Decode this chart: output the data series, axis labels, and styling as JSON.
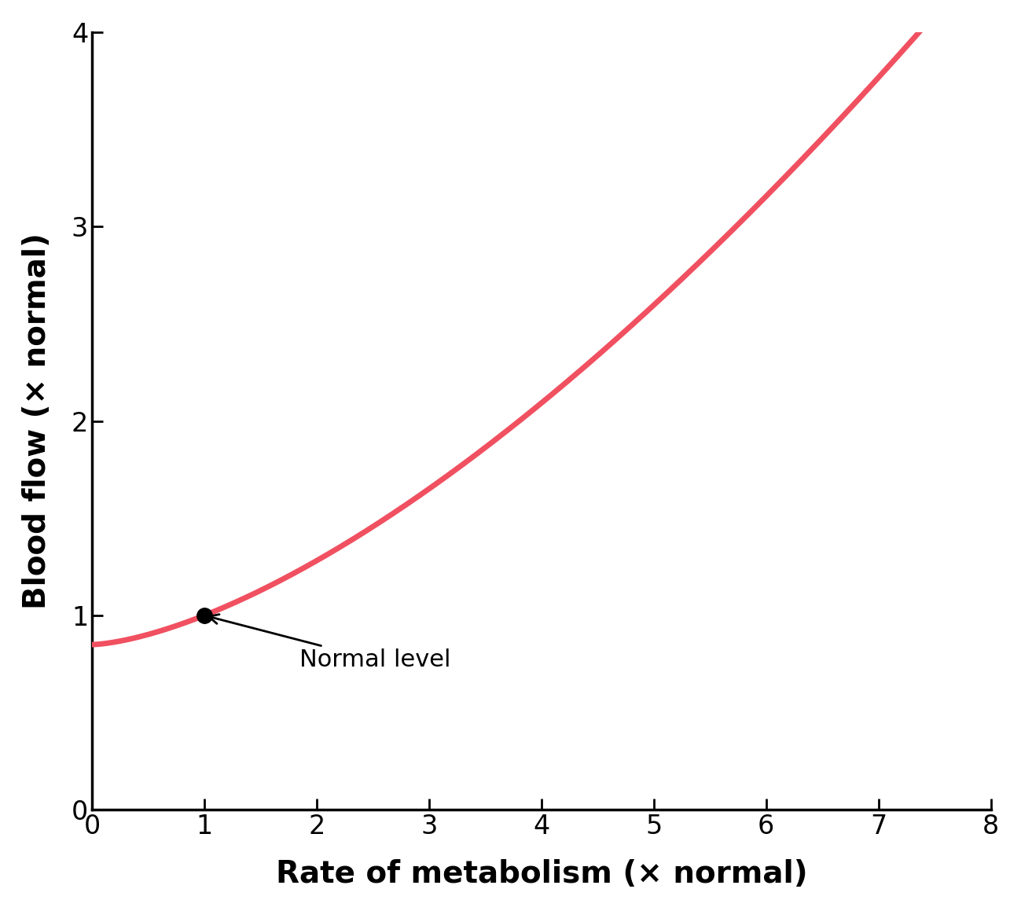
{
  "xlabel": "Rate of metabolism (× normal)",
  "ylabel": "Blood flow (× normal)",
  "xlim": [
    0,
    8
  ],
  "ylim": [
    0,
    4
  ],
  "xticks": [
    0,
    1,
    2,
    3,
    4,
    5,
    6,
    7,
    8
  ],
  "yticks": [
    0,
    1,
    2,
    3,
    4
  ],
  "curve_color": "#f05060",
  "curve_linewidth": 5.0,
  "dot_x": 1.0,
  "dot_y": 1.0,
  "dot_color": "#000000",
  "dot_markersize": 14,
  "annotation_text": "Normal level",
  "annotation_fontsize": 22,
  "xlabel_fontsize": 28,
  "ylabel_fontsize": 28,
  "tick_fontsize": 24,
  "background_color": "#ffffff",
  "x_start": 0.0,
  "x_end": 7.5,
  "curve_a": 0.85,
  "curve_b": 0.065,
  "curve_n": 1.75
}
